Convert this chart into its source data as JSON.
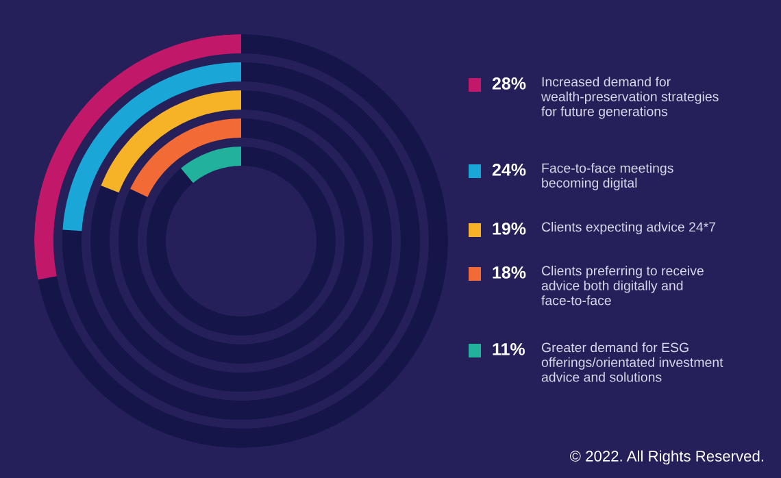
{
  "chart_data": {
    "type": "other",
    "categories": [
      "Increased demand for\nwealth-preservation strategies\nfor future generations",
      "Face-to-face meetings\nbecoming digital",
      "Clients expecting advice 24*7",
      "Clients preferring to receive\nadvice both digitally and\nface-to-face",
      "Greater demand for ESG\nofferings/orientated investment\nadvice and solutions"
    ],
    "values": [
      28,
      24,
      19,
      18,
      11
    ],
    "colors": [
      "#c2186a",
      "#1ba6d8",
      "#f6b328",
      "#f26a35",
      "#22b29c"
    ],
    "value_labels": [
      "28%",
      "24%",
      "19%",
      "18%",
      "11%"
    ],
    "annotations": [
      "© 2022. All Rights Reserved."
    ]
  }
}
